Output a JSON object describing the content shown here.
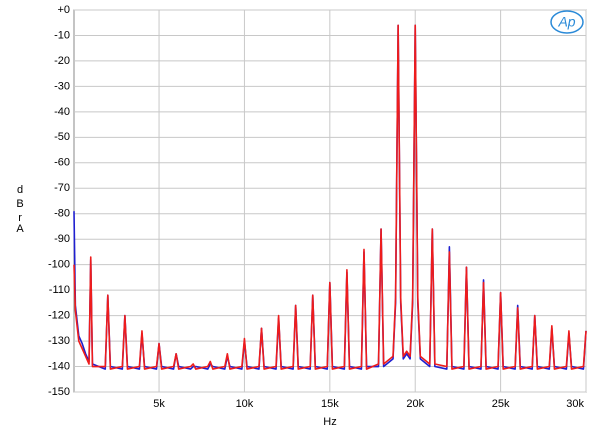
{
  "chart_data": {
    "type": "line",
    "logo": "Ap",
    "xlabel": "Hz",
    "ylabel": "dBr",
    "ylabel_2": "A",
    "xlim": [
      20,
      30000
    ],
    "ylim": [
      -150,
      0
    ],
    "grid": true,
    "xticks": [
      {
        "value": 5000,
        "label": "5k"
      },
      {
        "value": 10000,
        "label": "10k"
      },
      {
        "value": 15000,
        "label": "15k"
      },
      {
        "value": 20000,
        "label": "20k"
      },
      {
        "value": 25000,
        "label": "25k"
      },
      {
        "value": 30000,
        "label": "30k"
      }
    ],
    "yticks": [
      {
        "value": 0,
        "label": "+0"
      },
      -10,
      -20,
      -30,
      -40,
      -50,
      -60,
      -70,
      -80,
      -90,
      -100,
      -110,
      -120,
      -130,
      -140,
      -150
    ],
    "x": [
      20,
      100,
      200,
      300,
      500,
      700,
      900,
      1000,
      1100,
      1850,
      2000,
      2150,
      2850,
      3000,
      3150,
      3850,
      4000,
      4150,
      4850,
      5000,
      5150,
      5850,
      6000,
      6150,
      6850,
      7000,
      7150,
      7850,
      8000,
      8150,
      8850,
      9000,
      9150,
      9850,
      10000,
      10150,
      10850,
      11000,
      11150,
      11850,
      12000,
      12150,
      12850,
      13000,
      13150,
      13850,
      14000,
      14150,
      14850,
      15000,
      15150,
      15850,
      16000,
      16150,
      16850,
      17000,
      17150,
      17850,
      18000,
      18150,
      18700,
      18850,
      19000,
      19150,
      19300,
      19500,
      19700,
      19850,
      20000,
      20150,
      20300,
      20850,
      21000,
      21150,
      21850,
      22000,
      22150,
      22850,
      23000,
      23150,
      23850,
      24000,
      24150,
      24850,
      25000,
      25150,
      25850,
      26000,
      26150,
      26850,
      27000,
      27150,
      27850,
      28000,
      28150,
      28850,
      29000,
      29150,
      29850,
      30000
    ],
    "series": [
      {
        "color": "#1f1fd0",
        "values": [
          -79,
          -116,
          -122,
          -128,
          -131,
          -135,
          -138,
          -98,
          -139,
          -141,
          -112,
          -140,
          -141,
          -120,
          -140,
          -141,
          -127,
          -140,
          -141,
          -131,
          -140,
          -141,
          -135,
          -140,
          -141,
          -140,
          -140,
          -141,
          -139,
          -140,
          -141,
          -136,
          -140,
          -141,
          -130,
          -140,
          -141,
          -125,
          -140,
          -141,
          -121,
          -140,
          -141,
          -116,
          -140,
          -141,
          -112,
          -140,
          -141,
          -107,
          -140,
          -141,
          -103,
          -140,
          -141,
          -95,
          -140,
          -140,
          -86,
          -140,
          -137,
          -115,
          -6,
          -115,
          -137,
          -135,
          -137,
          -115,
          -6,
          -115,
          -137,
          -140,
          -86,
          -140,
          -141,
          -93,
          -140,
          -141,
          -101,
          -140,
          -141,
          -106,
          -140,
          -141,
          -111,
          -140,
          -141,
          -116,
          -140,
          -141,
          -120,
          -140,
          -141,
          -125,
          -140,
          -141,
          -127,
          -140,
          -141,
          -126
        ]
      },
      {
        "color": "#ee1c1c",
        "values": [
          -100,
          -118,
          -124,
          -130,
          -133,
          -136,
          -139,
          -97,
          -140,
          -140,
          -112,
          -141,
          -140,
          -120,
          -141,
          -140,
          -126,
          -141,
          -140,
          -131,
          -141,
          -140,
          -135,
          -141,
          -140,
          -139,
          -141,
          -140,
          -138,
          -141,
          -140,
          -135,
          -141,
          -140,
          -129,
          -141,
          -140,
          -125,
          -141,
          -140,
          -120,
          -141,
          -140,
          -116,
          -141,
          -140,
          -112,
          -141,
          -140,
          -107,
          -141,
          -140,
          -102,
          -141,
          -140,
          -94,
          -141,
          -139,
          -86,
          -139,
          -136,
          -113,
          -6,
          -113,
          -136,
          -134,
          -136,
          -113,
          -6,
          -113,
          -136,
          -139,
          -86,
          -139,
          -140,
          -95,
          -141,
          -140,
          -101,
          -141,
          -140,
          -107,
          -141,
          -140,
          -111,
          -141,
          -140,
          -117,
          -141,
          -140,
          -120,
          -141,
          -140,
          -124,
          -141,
          -140,
          -126,
          -141,
          -140,
          -126
        ]
      }
    ]
  }
}
